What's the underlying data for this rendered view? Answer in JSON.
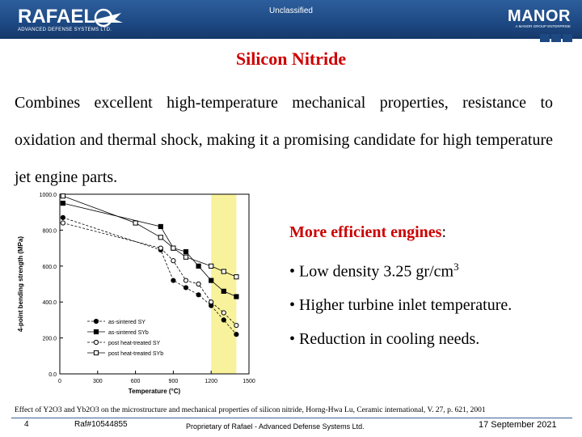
{
  "header": {
    "logo_name": "RAFAEL",
    "logo_subtitle": "ADVANCED DEFENSE SYSTEMS LTD.",
    "classification": "Unclassified",
    "partner_logo": "MANOR",
    "partner_subtitle": "A MANOR GROUP ENTERPRISE",
    "colors": {
      "header_blue": "#1d4983",
      "title_red": "#cc0000",
      "highlight": "#f8f29c"
    }
  },
  "slide": {
    "title": "Silicon Nitride",
    "intro": "Combines excellent high-temperature mechanical properties, resistance to oxidation and thermal shock, making it a promising candidate for high temperature jet engine parts.",
    "bullets": {
      "heading": "More efficient engines",
      "heading_colon": ":",
      "item1_prefix": "• Low density 3.25 gr/cm",
      "item1_sup": "3",
      "item2": "• Higher turbine inlet temperature.",
      "item3": "• Reduction in cooling needs."
    },
    "reference": "Effect of Y2O3 and Yb2O3 on the microstructure and mechanical properties of silicon nitride, Horng-Hwa Lu, Ceramic international, V. 27, p. 621, 2001"
  },
  "footer": {
    "page": "4",
    "ref": "Raf#10544855",
    "proprietary": "Proprietary of Rafael - Advanced Defense Systems Ltd.",
    "date": "17 September 2021"
  },
  "chart_data": {
    "type": "line",
    "xlabel": "Temperature (°C)",
    "ylabel": "4-point bending strength (MPa)",
    "xlim": [
      0,
      1500
    ],
    "ylim": [
      0,
      1000
    ],
    "x_ticks": [
      "0",
      "300",
      "600",
      "900",
      "1200",
      "1500"
    ],
    "y_ticks": [
      "0.0",
      "200.0",
      "400.0",
      "600.0",
      "800.0",
      "1000.0"
    ],
    "highlight_range": [
      1200,
      1400
    ],
    "legend_position": "bottom-left",
    "series": [
      {
        "name": "as-sintered SY",
        "marker": "circle-filled",
        "dash": true,
        "x": [
          25,
          800,
          900,
          1000,
          1100,
          1200,
          1300,
          1400
        ],
        "y": [
          870,
          690,
          520,
          480,
          440,
          380,
          300,
          220
        ]
      },
      {
        "name": "as-sintered SYb",
        "marker": "square-filled",
        "dash": false,
        "x": [
          25,
          800,
          900,
          1000,
          1100,
          1200,
          1300,
          1400
        ],
        "y": [
          950,
          820,
          700,
          680,
          600,
          520,
          460,
          430
        ]
      },
      {
        "name": "post heat-treated SY",
        "marker": "circle-open",
        "dash": true,
        "x": [
          25,
          800,
          900,
          1000,
          1100,
          1200,
          1300,
          1400
        ],
        "y": [
          840,
          700,
          630,
          520,
          500,
          400,
          340,
          270
        ]
      },
      {
        "name": "post heat-treated SYb",
        "marker": "square-open",
        "dash": false,
        "x": [
          25,
          600,
          800,
          900,
          1000,
          1200,
          1300,
          1400
        ],
        "y": [
          990,
          840,
          760,
          700,
          650,
          600,
          570,
          540
        ]
      }
    ]
  }
}
